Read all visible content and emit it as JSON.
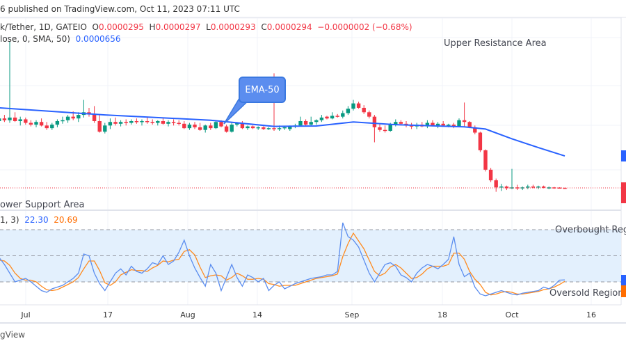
{
  "header": {
    "published": "6 published on TradingView.com, Oct 11, 2023 07:11 UTC"
  },
  "legend": {
    "symbol": "k/Tether, 1D, GATEIO",
    "o_label": "O",
    "o": "0.0000295",
    "h_label": "H",
    "h": "0.0000297",
    "l_label": "L",
    "l": "0.0000293",
    "c_label": "C",
    "c": "0.0000294",
    "change": "−0.0000002 (−0.68%)",
    "ma_label": "lose, 0, SMA, 50)",
    "ma_value": "0.0000656"
  },
  "osc_legend": {
    "params": "1, 3)",
    "k": "22.30",
    "d": "20.69"
  },
  "annotations": {
    "callout": "EMA-50",
    "upper": "Upper Resistance Area",
    "lower": "ower Support Area",
    "overbought": "Overbought Reg",
    "oversold": "Oversold Region"
  },
  "footer": {
    "brand": "gView"
  },
  "colors": {
    "up": "#089981",
    "down": "#f23645",
    "ema": "#2962ff",
    "k": "#5b8def",
    "d": "#ff8a1e",
    "band": "#e3f0fd"
  },
  "chart_data": [
    {
      "type": "candlestick",
      "title": "",
      "x_start": "2023-06-26",
      "x_ticks": [
        "Jul",
        "17",
        "Aug",
        "14",
        "Sep",
        "18",
        "Oct",
        "16"
      ],
      "ohlc": [
        [
          0.000105,
          0.000111,
          0.000101,
          0.000108
        ],
        [
          0.000108,
          0.000112,
          0.000104,
          0.000106
        ],
        [
          0.000106,
          0.000195,
          0.000103,
          0.000109
        ],
        [
          0.000109,
          0.000115,
          0.000104,
          0.000105
        ],
        [
          0.000105,
          0.00011,
          0.0001,
          0.000107
        ],
        [
          0.000107,
          0.000109,
          0.000101,
          0.000103
        ],
        [
          0.000103,
          0.000106,
          9.9e-05,
          0.000101
        ],
        [
          0.000101,
          0.000106,
          9.8e-05,
          0.000104
        ],
        [
          0.000104,
          0.000108,
          9.9e-05,
          0.0001
        ],
        [
          0.0001,
          0.000104,
          9.5e-05,
          9.7e-05
        ],
        [
          9.7e-05,
          0.000103,
          9.5e-05,
          0.000101
        ],
        [
          0.000101,
          0.000107,
          9.8e-05,
          0.000105
        ],
        [
          0.000105,
          0.00011,
          0.000102,
          0.000106
        ],
        [
          0.000106,
          0.000112,
          0.000103,
          0.00011
        ],
        [
          0.00011,
          0.000116,
          0.000106,
          0.000108
        ],
        [
          0.000108,
          0.000115,
          0.000104,
          0.000112
        ],
        [
          0.000112,
          0.000129,
          0.000109,
          0.000115
        ],
        [
          0.000115,
          0.00012,
          0.00011,
          0.000113
        ],
        [
          0.000113,
          0.000122,
          0.000103,
          0.000105
        ],
        [
          0.000105,
          0.000112,
          9.2e-05,
          9.3e-05
        ],
        [
          9.3e-05,
          0.000103,
          9.1e-05,
          0.0001
        ],
        [
          0.0001,
          0.000108,
          9.6e-05,
          0.000104
        ],
        [
          0.000104,
          0.000109,
          0.0001,
          0.000102
        ],
        [
          0.000102,
          0.000106,
          9.9e-05,
          0.000104
        ],
        [
          0.000104,
          0.000107,
          0.0001,
          0.000103
        ],
        [
          0.000103,
          0.000107,
          0.000101,
          0.000105
        ],
        [
          0.000105,
          0.000108,
          0.000102,
          0.000104
        ],
        [
          0.000104,
          0.000107,
          0.0001,
          0.000105
        ],
        [
          0.000105,
          0.000109,
          0.000102,
          0.000104
        ],
        [
          0.000104,
          0.000107,
          0.000101,
          0.000103
        ],
        [
          0.000103,
          0.000106,
          0.0001,
          0.000105
        ],
        [
          0.000105,
          0.000108,
          0.000101,
          0.000102
        ],
        [
          0.000102,
          0.000106,
          9.9e-05,
          0.000104
        ],
        [
          0.000104,
          0.000107,
          0.0001,
          0.000103
        ],
        [
          0.000103,
          0.000106,
          0.0001,
          0.000102
        ],
        [
          0.000102,
          0.000105,
          9.6e-05,
          9.7e-05
        ],
        [
          9.7e-05,
          0.000103,
          9.5e-05,
          0.000101
        ],
        [
          0.000101,
          0.000104,
          9.6e-05,
          9.8e-05
        ],
        [
          9.8e-05,
          0.000103,
          9.4e-05,
          9.5e-05
        ],
        [
          9.5e-05,
          0.000101,
          9.2e-05,
          0.0001
        ],
        [
          0.0001,
          0.000103,
          9.5e-05,
          9.7e-05
        ],
        [
          9.7e-05,
          0.000106,
          9.6e-05,
          0.000104
        ],
        [
          0.000104,
          0.000106,
          9.8e-05,
          9.9e-05
        ],
        [
          9.9e-05,
          0.000101,
          9.2e-05,
          9.3e-05
        ],
        [
          9.3e-05,
          0.000103,
          9.2e-05,
          0.000101
        ],
        [
          0.000101,
          0.000104,
          9.9e-05,
          0.000103
        ],
        [
          0.000103,
          0.000105,
          9.6e-05,
          9.7e-05
        ],
        [
          9.7e-05,
          0.0001,
          9.5e-05,
          9.9e-05
        ],
        [
          9.9e-05,
          0.0001,
          9.6e-05,
          9.7e-05
        ],
        [
          9.7e-05,
          9.9e-05,
          9.5e-05,
          9.8e-05
        ],
        [
          9.8e-05,
          9.9e-05,
          9.5e-05,
          9.6e-05
        ],
        [
          9.6e-05,
          9.8e-05,
          9.5e-05,
          9.7e-05
        ],
        [
          9.7e-05,
          0.000159,
          9.4e-05,
          9.6e-05
        ],
        [
          9.6e-05,
          0.0001,
          9.4e-05,
          9.7e-05
        ],
        [
          9.7e-05,
          9.9e-05,
          9.5e-05,
          9.8e-05
        ],
        [
          9.6e-05,
          0.0001,
          9.4e-05,
          9.9e-05
        ],
        [
          9.9e-05,
          0.000102,
          9.7e-05,
          0.0001
        ],
        [
          0.0001,
          0.00011,
          9.9e-05,
          0.000105
        ],
        [
          0.000105,
          0.000107,
          0.0001,
          0.000101
        ],
        [
          0.000101,
          0.00011,
          0.0001,
          0.000104
        ],
        [
          0.000104,
          0.000107,
          0.000101,
          0.000106
        ],
        [
          0.000106,
          0.000112,
          0.000104,
          0.000109
        ],
        [
          0.00011,
          0.000111,
          0.000107,
          0.000108
        ],
        [
          0.000108,
          0.000115,
          0.000107,
          0.000111
        ],
        [
          0.000111,
          0.000113,
          0.000109,
          0.00011
        ],
        [
          0.00011,
          0.000117,
          0.000108,
          0.000114
        ],
        [
          0.000114,
          0.000122,
          0.000112,
          0.000119
        ],
        [
          0.000119,
          0.000129,
          0.000117,
          0.000125
        ],
        [
          0.000125,
          0.000127,
          0.000119,
          0.00012
        ],
        [
          0.00012,
          0.000123,
          0.000113,
          0.000115
        ],
        [
          0.000115,
          0.000117,
          0.000108,
          0.00011
        ],
        [
          0.00011,
          0.000112,
          8.1e-05,
          9.8e-05
        ],
        [
          9.8e-05,
          0.000102,
          9.3e-05,
          9.5e-05
        ],
        [
          9.5e-05,
          0.0001,
          9.2e-05,
          9.4e-05
        ],
        [
          9.4e-05,
          0.000103,
          9.3e-05,
          0.000101
        ],
        [
          0.000101,
          0.000107,
          9.9e-05,
          0.000104
        ],
        [
          0.000104,
          0.000106,
          0.0001,
          0.000102
        ],
        [
          0.000102,
          0.000105,
          9.8e-05,
          0.0001
        ],
        [
          0.0001,
          0.000103,
          9.6e-05,
          9.9e-05
        ],
        [
          9.9e-05,
          0.000103,
          9.6e-05,
          0.000101
        ],
        [
          0.000101,
          0.000104,
          9.8e-05,
          9.9e-05
        ],
        [
          9.9e-05,
          0.000106,
          9.7e-05,
          0.000103
        ],
        [
          0.000103,
          0.000106,
          9.9e-05,
          0.0001
        ],
        [
          0.0001,
          0.000104,
          9.7e-05,
          0.000102
        ],
        [
          0.000102,
          0.000105,
          9.9e-05,
          0.0001
        ],
        [
          0.0001,
          0.000102,
          9.8e-05,
          0.000101
        ],
        [
          0.000101,
          0.000103,
          9.7e-05,
          9.9e-05
        ],
        [
          9.9e-05,
          0.000108,
          9.8e-05,
          0.000106
        ],
        [
          0.000106,
          0.000126,
          9.8e-05,
          0.000104
        ],
        [
          0.000104,
          0.000105,
          9.7e-05,
          9.8e-05
        ],
        [
          9.8e-05,
          0.0001,
          9e-05,
          9.2e-05
        ],
        [
          9.2e-05,
          9.3e-05,
          7e-05,
          7.2e-05
        ],
        [
          7.2e-05,
          7.3e-05,
          4.8e-05,
          5e-05
        ],
        [
          5e-05,
          5.2e-05,
          3.6e-05,
          3.8e-05
        ],
        [
          3.8e-05,
          4e-05,
          2.5e-05,
          3e-05
        ],
        [
          3e-05,
          3.4e-05,
          2.6e-05,
          3.1e-05
        ],
        [
          3.1e-05,
          3.2e-05,
          2.7e-05,
          2.9e-05
        ],
        [
          2.9e-05,
          5.1e-05,
          2.8e-05,
          3e-05
        ],
        [
          3e-05,
          3.3e-05,
          2.7e-05,
          2.9e-05
        ],
        [
          2.9e-05,
          3.1e-05,
          2.7e-05,
          3e-05
        ],
        [
          3e-05,
          3.3e-05,
          2.8e-05,
          3.1e-05
        ],
        [
          3.1e-05,
          3.3e-05,
          2.9e-05,
          3e-05
        ],
        [
          3e-05,
          3.2e-05,
          2.8e-05,
          3.1e-05
        ],
        [
          3.1e-05,
          3.2e-05,
          2.9e-05,
          2.95e-05
        ],
        [
          2.95e-05,
          3.1e-05,
          2.8e-05,
          3e-05
        ],
        [
          3e-05,
          3.05e-05,
          2.85e-05,
          2.98e-05
        ],
        [
          2.98e-05,
          3.02e-05,
          2.9e-05,
          2.96e-05
        ],
        [
          2.95e-05,
          2.97e-05,
          2.93e-05,
          2.94e-05
        ]
      ],
      "ma_series": {
        "points": [
          [
            0,
            0.00012
          ],
          [
            20,
            0.000112
          ],
          [
            40,
            0.000106
          ],
          [
            52,
            9.9e-05
          ],
          [
            60,
            9.95e-05
          ],
          [
            67,
            0.000104
          ],
          [
            75,
            0.000101
          ],
          [
            88,
            9.85e-05
          ],
          [
            92,
            9.6e-05
          ],
          [
            97,
            8.5e-05
          ],
          [
            102,
            7.5e-05
          ],
          [
            107,
            6.56e-05
          ]
        ]
      },
      "last_price_line": 2.94e-05
    },
    {
      "type": "line",
      "title": "",
      "ylim": [
        0,
        100
      ],
      "bands": {
        "upper": 80,
        "middle": 50,
        "lower": 20
      },
      "series": [
        {
          "values": [
            48,
            40,
            30,
            20,
            22,
            24,
            20,
            15,
            10,
            8,
            12,
            14,
            16,
            20,
            24,
            30,
            52,
            50,
            30,
            18,
            10,
            20,
            30,
            35,
            28,
            38,
            32,
            30,
            35,
            42,
            40,
            50,
            40,
            44,
            54,
            68,
            50,
            36,
            25,
            15,
            40,
            30,
            10,
            25,
            40,
            25,
            15,
            28,
            25,
            20,
            24,
            10,
            16,
            20,
            12,
            15,
            18,
            20,
            22,
            24,
            25,
            26,
            28,
            28,
            32,
            88,
            72,
            68,
            60,
            45,
            30,
            20,
            30,
            40,
            42,
            38,
            28,
            25,
            20,
            30,
            36,
            40,
            38,
            35,
            40,
            46,
            72,
            40,
            26,
            30,
            14,
            6,
            4,
            6,
            8,
            10,
            8,
            6,
            5,
            7,
            8,
            9,
            10,
            14,
            12,
            16,
            22,
            22.3
          ]
        },
        {
          "values": [
            45,
            44,
            39,
            30,
            24,
            22,
            22,
            20,
            15,
            11,
            10,
            11,
            14,
            17,
            20,
            25,
            35,
            44,
            44,
            33,
            19,
            16,
            20,
            28,
            31,
            34,
            33,
            33,
            32,
            36,
            39,
            44,
            43,
            45,
            46,
            55,
            57,
            51,
            37,
            25,
            27,
            28,
            27,
            22,
            25,
            30,
            27,
            23,
            23,
            24,
            23,
            18,
            17,
            15,
            16,
            16,
            16,
            18,
            20,
            22,
            24,
            25,
            26,
            27,
            29,
            49,
            64,
            76,
            67,
            58,
            45,
            32,
            27,
            30,
            37,
            40,
            36,
            30,
            24,
            25,
            29,
            35,
            38,
            38,
            38,
            40,
            53,
            53,
            46,
            32,
            23,
            17,
            8,
            5,
            6,
            8,
            9,
            8,
            6,
            6,
            7,
            8,
            9,
            11,
            12,
            14,
            17,
            20.69
          ]
        }
      ]
    }
  ]
}
